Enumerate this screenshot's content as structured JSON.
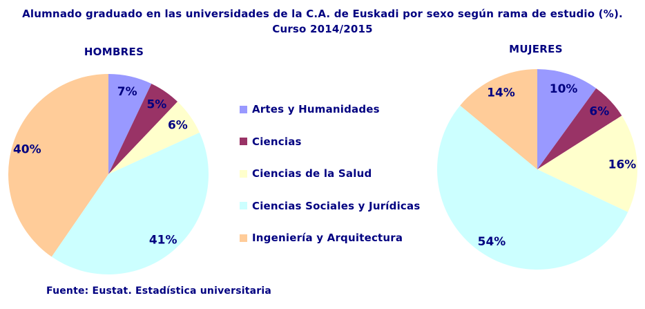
{
  "title": "Alumnado graduado en las universidades de la C.A. de Euskadi por sexo según rama de estudio (%). Curso 2014/2015",
  "footer": "Fuente: Eustat. Estadística universitaria",
  "colors": {
    "text": "#000080",
    "background": "#FFFFFF",
    "series": [
      "#9999FF",
      "#993366",
      "#FFFFCC",
      "#CCFFFF",
      "#FFCC99"
    ]
  },
  "legend": {
    "position": "center-between-charts",
    "items": [
      {
        "label": "Artes y Humanidades",
        "color": "#9999FF"
      },
      {
        "label": "Ciencias",
        "color": "#993366"
      },
      {
        "label": "Ciencias de la Salud",
        "color": "#FFFFCC"
      },
      {
        "label": "Ciencias Sociales y Jurídicas",
        "color": "#CCFFFF"
      },
      {
        "label": "Ingeniería y Arquitectura",
        "color": "#FFCC99"
      }
    ]
  },
  "chart_data": [
    {
      "type": "pie",
      "title": "HOMBRES",
      "categories": [
        "Artes y Humanidades",
        "Ciencias",
        "Ciencias de la Salud",
        "Ciencias Sociales y Jurídicas",
        "Ingeniería y Arquitectura"
      ],
      "values": [
        7,
        5,
        6,
        41,
        40
      ],
      "labels": [
        "7%",
        "5%",
        "6%",
        "41%",
        "40%"
      ],
      "unit": "percent",
      "start_angle_deg": 0,
      "direction": "clockwise",
      "colors": [
        "#9999FF",
        "#993366",
        "#FFFFCC",
        "#CCFFFF",
        "#FFCC99"
      ]
    },
    {
      "type": "pie",
      "title": "MUJERES",
      "categories": [
        "Artes y Humanidades",
        "Ciencias",
        "Ciencias de la Salud",
        "Ciencias Sociales y Jurídicas",
        "Ingeniería y Arquitectura"
      ],
      "values": [
        10,
        6,
        16,
        54,
        14
      ],
      "labels": [
        "10%",
        "6%",
        "16%",
        "54%",
        "14%"
      ],
      "unit": "percent",
      "start_angle_deg": 0,
      "direction": "clockwise",
      "colors": [
        "#9999FF",
        "#993366",
        "#FFFFCC",
        "#CCFFFF",
        "#FFCC99"
      ]
    }
  ]
}
